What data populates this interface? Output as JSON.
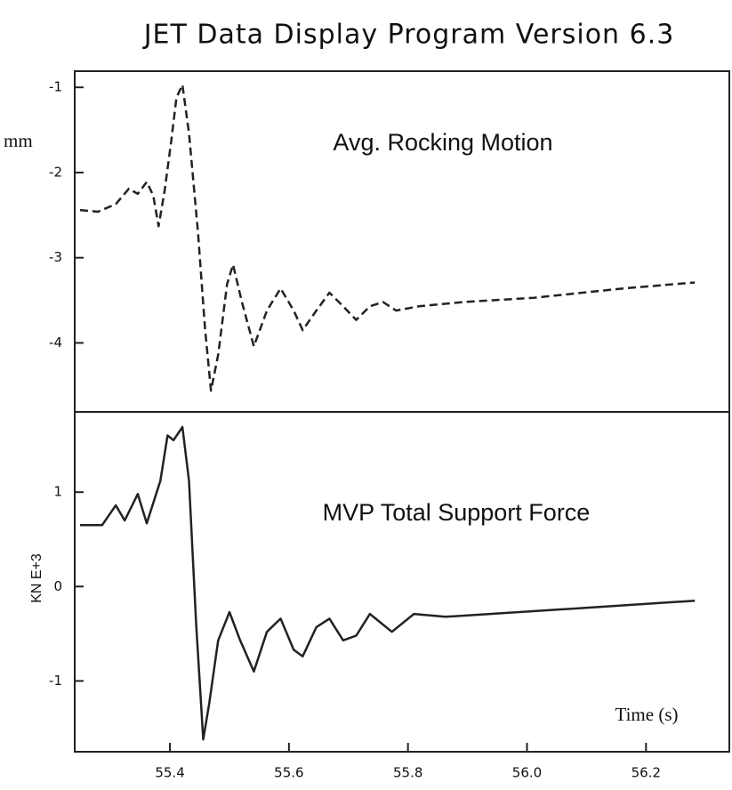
{
  "chart_data": [
    {
      "type": "line",
      "title": "JET Data Display Program Version 6.3",
      "annotation": "Avg. Rocking Motion",
      "y_label": "mm",
      "x": [
        55.249,
        55.279,
        55.309,
        55.331,
        55.346,
        55.361,
        55.372,
        55.381,
        55.391,
        55.402,
        55.411,
        55.421,
        55.432,
        55.447,
        55.459,
        55.469,
        55.481,
        55.496,
        55.506,
        55.521,
        55.541,
        55.563,
        55.586,
        55.608,
        55.623,
        55.646,
        55.668,
        55.691,
        55.713,
        55.736,
        55.758,
        55.78,
        55.818,
        55.893,
        56.012,
        56.162,
        56.282
      ],
      "series": [
        {
          "color": "#222222",
          "dashed": true,
          "values": [
            -2.44,
            -2.46,
            -2.37,
            -2.19,
            -2.25,
            -2.11,
            -2.27,
            -2.63,
            -2.22,
            -1.64,
            -1.12,
            -0.97,
            -1.54,
            -2.69,
            -3.83,
            -4.56,
            -4.14,
            -3.31,
            -3.08,
            -3.52,
            -4.04,
            -3.62,
            -3.36,
            -3.62,
            -3.85,
            -3.62,
            -3.41,
            -3.57,
            -3.73,
            -3.57,
            -3.52,
            -3.62,
            -3.57,
            -3.52,
            -3.47,
            -3.36,
            -3.29
          ]
        }
      ],
      "xlim": [
        55.24,
        56.34
      ],
      "ylim": [
        -4.81,
        -0.81
      ],
      "yticks": [
        -1,
        -2,
        -3,
        -4
      ]
    },
    {
      "type": "line",
      "annotation": "MVP Total Support Force",
      "y_label": "KN E+3",
      "x_label": "Time (s)",
      "x": [
        55.249,
        55.286,
        55.309,
        55.324,
        55.346,
        55.361,
        55.384,
        55.396,
        55.406,
        55.421,
        55.432,
        55.444,
        55.456,
        55.466,
        55.481,
        55.5,
        55.518,
        55.541,
        55.563,
        55.586,
        55.608,
        55.623,
        55.646,
        55.668,
        55.691,
        55.713,
        55.736,
        55.773,
        55.81,
        55.863,
        55.938,
        56.087,
        56.282
      ],
      "series": [
        {
          "color": "#222222",
          "dashed": false,
          "values": [
            0.65,
            0.65,
            0.86,
            0.7,
            0.98,
            0.67,
            1.12,
            1.6,
            1.55,
            1.69,
            1.12,
            -0.39,
            -1.62,
            -1.24,
            -0.57,
            -0.27,
            -0.57,
            -0.9,
            -0.48,
            -0.34,
            -0.67,
            -0.74,
            -0.43,
            -0.34,
            -0.57,
            -0.52,
            -0.29,
            -0.48,
            -0.29,
            -0.32,
            -0.29,
            -0.23,
            -0.15
          ]
        }
      ],
      "xlim": [
        55.24,
        56.34
      ],
      "ylim": [
        -1.75,
        1.85
      ],
      "yticks": [
        1,
        0,
        -1
      ],
      "xticks": [
        55.4,
        55.6,
        55.8,
        {
          "value": 56,
          "label": "56.0"
        },
        56.2
      ]
    }
  ]
}
